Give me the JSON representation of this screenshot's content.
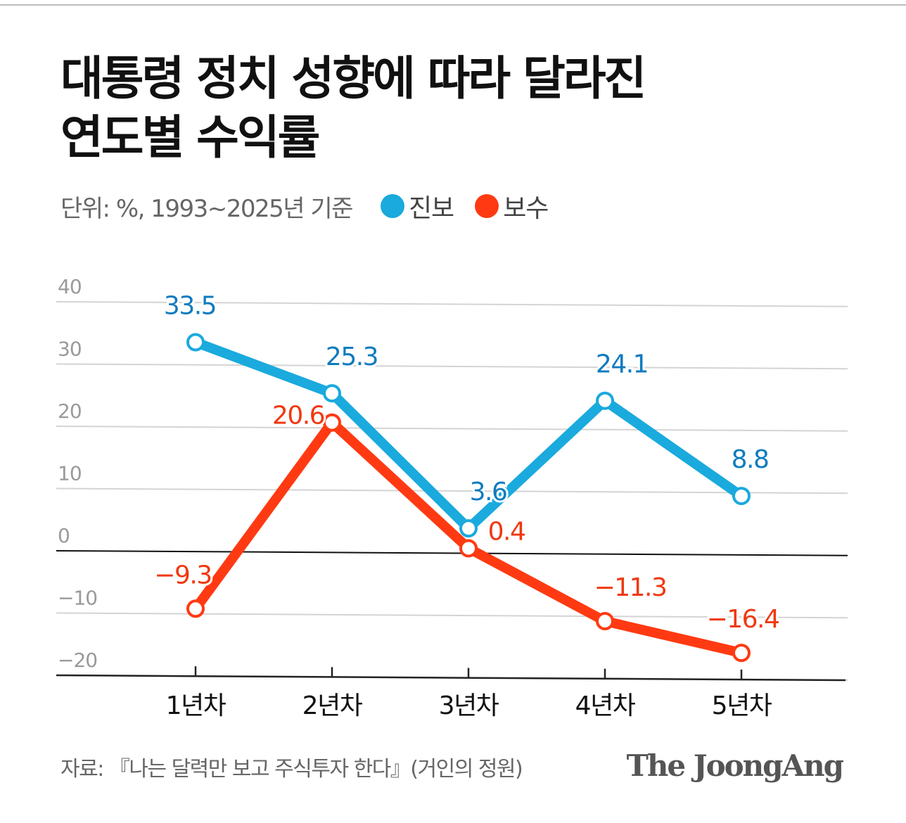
{
  "title": {
    "line1": "대통령 정치 성향에 따라 달라진",
    "line2": "연도별 수익률"
  },
  "unit_text": "단위: %, 1993~2025년 기준",
  "legend": [
    {
      "label": "진보",
      "color": "#1aaadd"
    },
    {
      "label": "보수",
      "color": "#ff3a12"
    }
  ],
  "chart_data": {
    "type": "line",
    "categories": [
      "1년차",
      "2년차",
      "3년차",
      "4년차",
      "5년차"
    ],
    "series": [
      {
        "name": "진보",
        "values": [
          33.5,
          25.3,
          3.6,
          24.1,
          8.8
        ],
        "labels": [
          "33.5",
          "25.3",
          "3.6",
          "24.1",
          "8.8"
        ],
        "color": "#1aaadd",
        "label_color": "#0f7bbf"
      },
      {
        "name": "보수",
        "values": [
          -9.3,
          20.6,
          0.4,
          -11.3,
          -16.4
        ],
        "labels": [
          "−9.3",
          "20.6",
          "0.4",
          "−11.3",
          "−16.4"
        ],
        "color": "#ff3a12",
        "label_color": "#f0380f"
      }
    ],
    "yticks": [
      40,
      30,
      20,
      10,
      0,
      -10,
      -20
    ],
    "ytick_labels": [
      "40",
      "30",
      "20",
      "10",
      "0",
      "−10",
      "−20"
    ],
    "ylim": [
      -20,
      40
    ],
    "xlabel": "",
    "ylabel": "",
    "grid": true,
    "legend": "top-left"
  },
  "footer": {
    "source": "자료: 『나는 달력만 보고 주식투자 한다』(거인의 정원)",
    "brand": "The JoongAng"
  }
}
